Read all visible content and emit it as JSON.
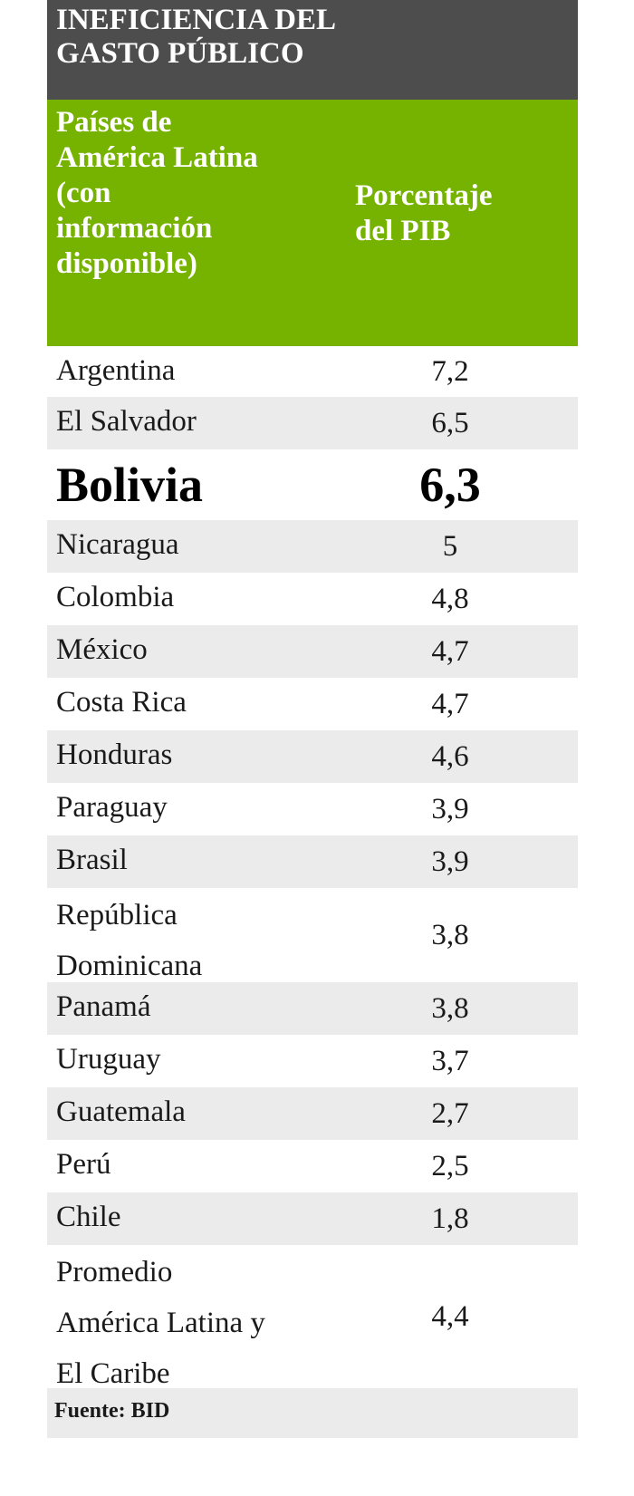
{
  "title": "INEFICIENCIA DEL GASTO PÚBLICO",
  "title_lines": [
    "INEFICIENCIA DEL",
    "GASTO PÚBLICO"
  ],
  "header": {
    "country_col_lines": [
      "Países de",
      "América Latina",
      "(con",
      "información",
      "disponible)"
    ],
    "value_col_lines": [
      "Porcentaje",
      "del PIB"
    ]
  },
  "colors": {
    "title_bg": "#4d4d4d",
    "header_bg": "#76b300",
    "alt_row_bg": "#ebebeb"
  },
  "chart_data": {
    "type": "table",
    "title": "INEFICIENCIA DEL GASTO PÚBLICO",
    "columns": [
      "Países de América Latina (con información disponible)",
      "Porcentaje del PIB"
    ],
    "rows": [
      {
        "country_lines": [
          "Argentina"
        ],
        "value": "7,2"
      },
      {
        "country_lines": [
          "El Salvador"
        ],
        "value": "6,5"
      },
      {
        "country_lines": [
          "Bolivia"
        ],
        "value": "6,3",
        "highlight": true
      },
      {
        "country_lines": [
          "Nicaragua"
        ],
        "value": "5"
      },
      {
        "country_lines": [
          "Colombia"
        ],
        "value": "4,8"
      },
      {
        "country_lines": [
          "México"
        ],
        "value": "4,7"
      },
      {
        "country_lines": [
          "Costa Rica"
        ],
        "value": "4,7"
      },
      {
        "country_lines": [
          "Honduras"
        ],
        "value": "4,6"
      },
      {
        "country_lines": [
          "Paraguay"
        ],
        "value": "3,9"
      },
      {
        "country_lines": [
          "Brasil"
        ],
        "value": "3,9"
      },
      {
        "country_lines": [
          "República",
          "Dominicana"
        ],
        "value": "3,8"
      },
      {
        "country_lines": [
          "Panamá"
        ],
        "value": "3,8"
      },
      {
        "country_lines": [
          "Uruguay"
        ],
        "value": "3,7"
      },
      {
        "country_lines": [
          "Guatemala"
        ],
        "value": "2,7"
      },
      {
        "country_lines": [
          "Perú"
        ],
        "value": "2,5"
      },
      {
        "country_lines": [
          "Chile"
        ],
        "value": "1,8"
      },
      {
        "country_lines": [
          "Promedio",
          "América Latina y",
          "El Caribe"
        ],
        "value": "4,4"
      }
    ]
  },
  "footer": "Fuente: BID"
}
